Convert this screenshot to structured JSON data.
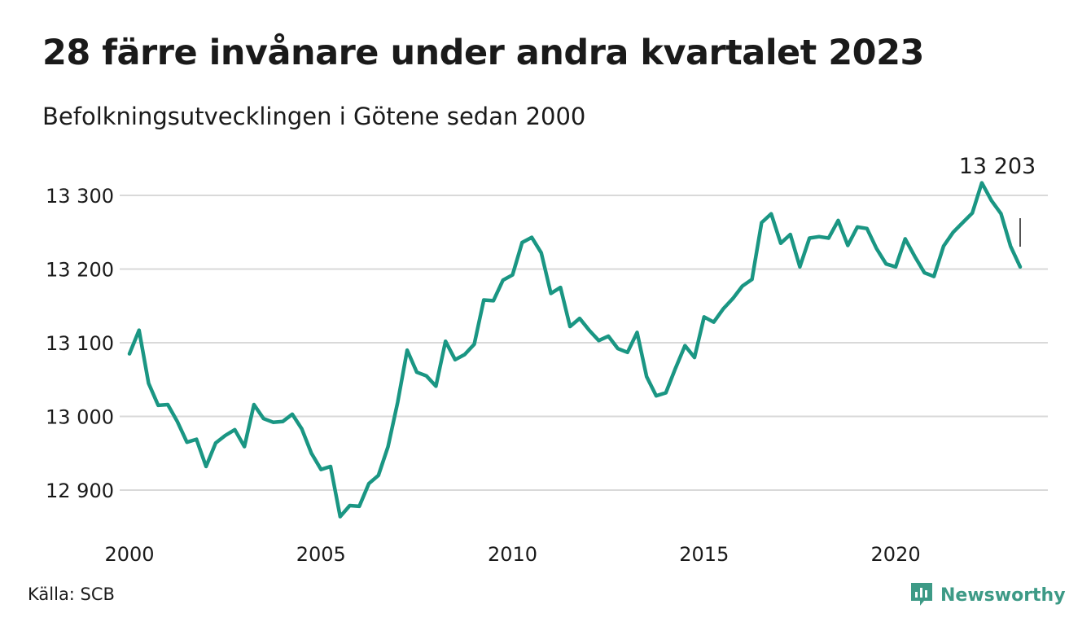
{
  "title": "28 färre invånare under andra kvartalet 2023",
  "subtitle": "Befolkningsutvecklingen i Götene sedan 2000",
  "source": "Källa: SCB",
  "brand": {
    "name": "Newsworthy",
    "icon": "newsworthy-logo-icon",
    "color": "#3d9a86"
  },
  "chart_data": {
    "type": "line",
    "line_color": "#1a9683",
    "grid": true,
    "ylim": [
      12860,
      13320
    ],
    "xlim": [
      2000,
      2024
    ],
    "y_ticks": [
      12900,
      13000,
      13100,
      13200,
      13300
    ],
    "y_tick_labels": [
      "12 900",
      "13 000",
      "13 100",
      "13 200",
      "13 300"
    ],
    "x_ticks": [
      2000,
      2005,
      2010,
      2015,
      2020
    ],
    "x_tick_labels": [
      "2000",
      "2005",
      "2010",
      "2015",
      "2020"
    ],
    "end_label": "13 203",
    "series": [
      {
        "x": [
          2000.0,
          2000.25,
          2000.5,
          2000.75,
          2001.0,
          2001.25,
          2001.5,
          2001.75,
          2002.0,
          2002.25,
          2002.5,
          2002.75,
          2003.0,
          2003.25,
          2003.5,
          2003.75,
          2004.0,
          2004.25,
          2004.5,
          2004.75,
          2005.0,
          2005.25,
          2005.5,
          2005.75,
          2006.0,
          2006.25,
          2006.5,
          2006.75,
          2007.0,
          2007.25,
          2007.5,
          2007.75,
          2008.0,
          2008.25,
          2008.5,
          2008.75,
          2009.0,
          2009.25,
          2009.5,
          2009.75,
          2010.0,
          2010.25,
          2010.5,
          2010.75,
          2011.0,
          2011.25,
          2011.5,
          2011.75,
          2012.0,
          2012.25,
          2012.5,
          2012.75,
          2013.0,
          2013.25,
          2013.5,
          2013.75,
          2014.0,
          2014.25,
          2014.5,
          2014.75,
          2015.0,
          2015.25,
          2015.5,
          2015.75,
          2016.0,
          2016.25,
          2016.5,
          2016.75,
          2017.0,
          2017.25,
          2017.5,
          2017.75,
          2018.0,
          2018.25,
          2018.5,
          2018.75,
          2019.0,
          2019.25,
          2019.5,
          2019.75,
          2020.0,
          2020.25,
          2020.5,
          2020.75,
          2021.0,
          2021.25,
          2021.5,
          2021.75,
          2022.0,
          2022.25,
          2022.5,
          2022.75,
          2023.0,
          2023.25
        ],
        "values": [
          13085,
          13117,
          13045,
          13015,
          13016,
          12993,
          12965,
          12969,
          12932,
          12964,
          12974,
          12982,
          12959,
          13016,
          12997,
          12992,
          12993,
          13003,
          12983,
          12950,
          12928,
          12932,
          12864,
          12879,
          12878,
          12909,
          12920,
          12959,
          13019,
          13090,
          13060,
          13055,
          13041,
          13102,
          13077,
          13084,
          13098,
          13158,
          13157,
          13185,
          13192,
          13236,
          13243,
          13222,
          13167,
          13175,
          13122,
          13133,
          13117,
          13103,
          13109,
          13092,
          13087,
          13114,
          13054,
          13028,
          13032,
          13065,
          13096,
          13080,
          13135,
          13128,
          13146,
          13160,
          13177,
          13186,
          13263,
          13275,
          13235,
          13247,
          13203,
          13242,
          13244,
          13242,
          13266,
          13232,
          13257,
          13255,
          13228,
          13207,
          13203,
          13241,
          13217,
          13195,
          13190,
          13231,
          13250,
          13263,
          13276,
          13317,
          13293,
          13275,
          13231,
          13203
        ]
      }
    ]
  }
}
